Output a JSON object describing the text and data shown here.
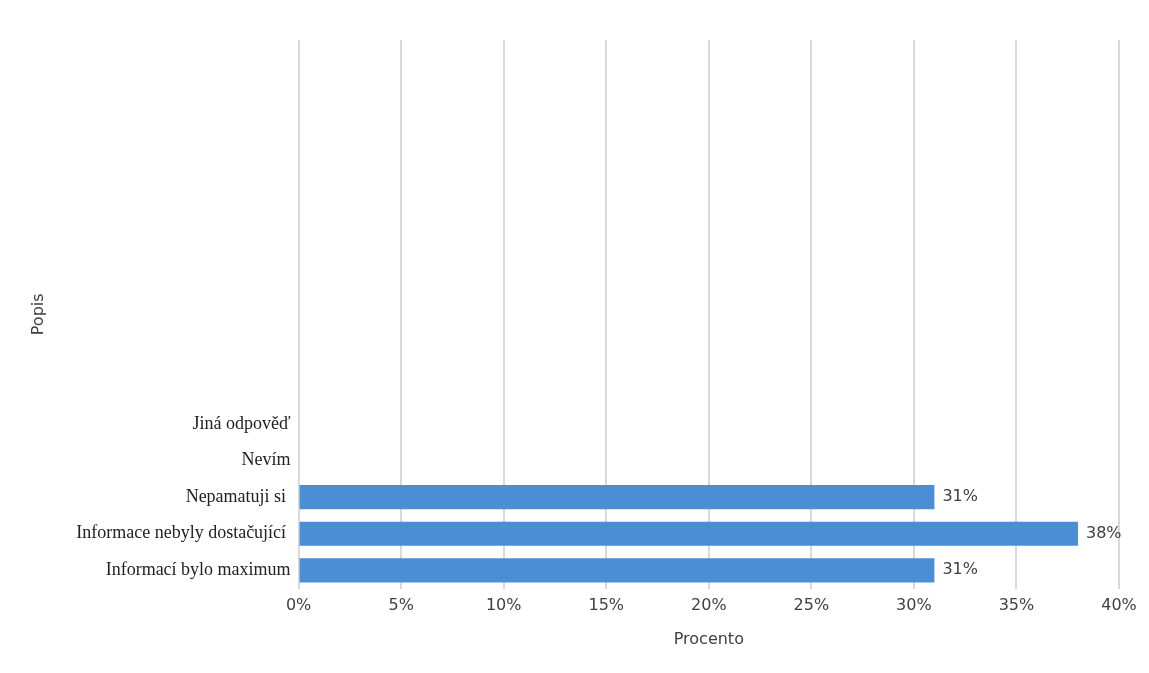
{
  "chart_data": {
    "type": "bar",
    "orientation": "horizontal",
    "xlabel": "Procento",
    "ylabel": "Popis",
    "categories": [
      null,
      null,
      null,
      null,
      null,
      null,
      null,
      null,
      null,
      null,
      "Jiná odpověď",
      "Nevím",
      "Nepamatuji si ",
      "Informace nebyly dostačující ",
      "Informací bylo maximum"
    ],
    "values": [
      null,
      null,
      null,
      null,
      null,
      null,
      null,
      null,
      null,
      null,
      null,
      null,
      31,
      38,
      31
    ],
    "value_labels": [
      null,
      null,
      null,
      null,
      null,
      null,
      null,
      null,
      null,
      null,
      null,
      null,
      "31%",
      "38%",
      "31%"
    ],
    "color": "#4a8fd6",
    "xlim": [
      0,
      40
    ],
    "xticks": [
      {
        "value": 0,
        "label": "0%"
      },
      {
        "value": 5,
        "label": "5%"
      },
      {
        "value": 10,
        "label": "10%"
      },
      {
        "value": 15,
        "label": "15%"
      },
      {
        "value": 20,
        "label": "20%"
      },
      {
        "value": 25,
        "label": "25%"
      },
      {
        "value": 30,
        "label": "30%"
      },
      {
        "value": 35,
        "label": "35%"
      },
      {
        "value": 40,
        "label": "40%"
      }
    ],
    "grid": "x",
    "legend": false
  }
}
